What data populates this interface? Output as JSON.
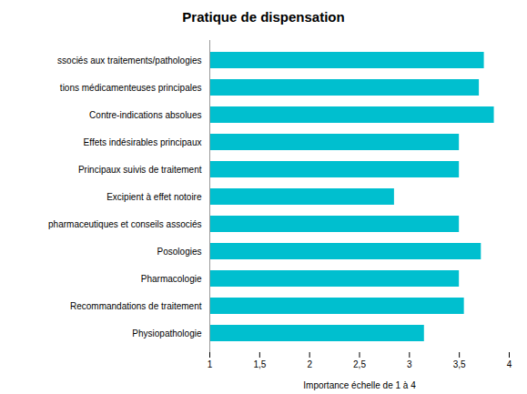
{
  "chart_data": {
    "type": "bar",
    "orientation": "horizontal",
    "title": "Pratique de dispensation",
    "xlabel": "Importance échelle de 1 à 4",
    "categories": [
      "Physiopathologie",
      "Recommandations de traitement",
      "Pharmacologie",
      "Posologies",
      "pharmaceutiques et conseils associés",
      "Excipient à effet notoire",
      "Principaux suivis de traitement",
      "Effets indésirables principaux",
      "Contre-indications absolues",
      "tions médicamenteuses principales",
      "ssociés aux traitements/pathologies"
    ],
    "values": [
      3.15,
      3.55,
      3.5,
      3.72,
      3.5,
      2.85,
      3.5,
      3.5,
      3.85,
      3.7,
      3.75
    ],
    "color": "#00BFCF",
    "xlim": [
      1,
      4
    ],
    "xticks": [
      1,
      {
        "value": 1.5,
        "label": "1,5"
      },
      2,
      {
        "value": 2.5,
        "label": "2,5"
      },
      3,
      {
        "value": 3.5,
        "label": "3,5"
      },
      4
    ],
    "grid": false
  }
}
